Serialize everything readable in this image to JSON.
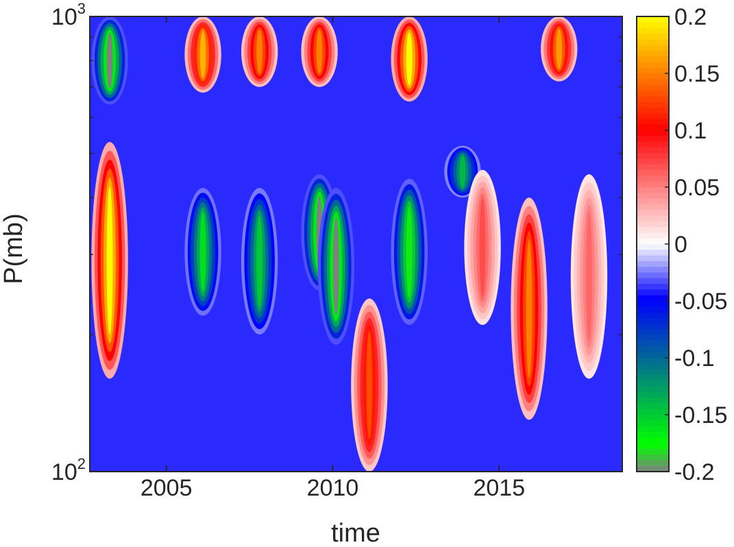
{
  "chart_data": {
    "type": "heatmap",
    "title": "",
    "xlabel": "time",
    "ylabel": "P(mb)",
    "x_range": [
      2002.7,
      2018.7
    ],
    "y_range": [
      1000,
      100
    ],
    "y_scale": "log",
    "x_ticks": [
      "2005",
      "2010",
      "2015"
    ],
    "x_tick_values": [
      2005,
      2010,
      2015
    ],
    "y_ticks": [
      {
        "base": "10",
        "exp": "3",
        "value": 1000
      },
      {
        "base": "10",
        "exp": "2",
        "value": 100
      }
    ],
    "colorbar": {
      "range": [
        -0.2,
        0.2
      ],
      "tick_labels": [
        "0.2",
        "0.15",
        "0.1",
        "0.05",
        "0",
        "-0.05",
        "-0.1",
        "-0.15",
        "-0.2"
      ],
      "tick_values": [
        0.2,
        0.15,
        0.1,
        0.05,
        0,
        -0.05,
        -0.1,
        -0.15,
        -0.2
      ],
      "colors": [
        "#808080",
        "#00ff00",
        "#008080",
        "#0000ff",
        "#ffffff",
        "#ff0000",
        "#ffff00"
      ]
    },
    "features": [
      {
        "time": 2003.3,
        "p_low": 160,
        "p_high": 530,
        "value": 0.2
      },
      {
        "time": 2003.3,
        "p_low": 640,
        "p_high": 1000,
        "value": -0.2
      },
      {
        "time": 2006.1,
        "p_low": 680,
        "p_high": 1000,
        "value": 0.17
      },
      {
        "time": 2006.1,
        "p_low": 220,
        "p_high": 420,
        "value": -0.16
      },
      {
        "time": 2007.8,
        "p_low": 700,
        "p_high": 1000,
        "value": 0.15
      },
      {
        "time": 2007.8,
        "p_low": 200,
        "p_high": 420,
        "value": -0.15
      },
      {
        "time": 2009.6,
        "p_low": 250,
        "p_high": 450,
        "value": -0.2
      },
      {
        "time": 2009.6,
        "p_low": 700,
        "p_high": 1000,
        "value": 0.15
      },
      {
        "time": 2010.1,
        "p_low": 190,
        "p_high": 420,
        "value": -0.2
      },
      {
        "time": 2011.1,
        "p_low": 100,
        "p_high": 240,
        "value": 0.13
      },
      {
        "time": 2012.3,
        "p_low": 650,
        "p_high": 1000,
        "value": 0.2
      },
      {
        "time": 2012.3,
        "p_low": 210,
        "p_high": 440,
        "value": -0.18
      },
      {
        "time": 2013.9,
        "p_low": 400,
        "p_high": 520,
        "value": -0.14
      },
      {
        "time": 2014.5,
        "p_low": 210,
        "p_high": 460,
        "value": 0.07
      },
      {
        "time": 2015.9,
        "p_low": 130,
        "p_high": 400,
        "value": 0.15
      },
      {
        "time": 2016.8,
        "p_low": 720,
        "p_high": 1000,
        "value": 0.16
      },
      {
        "time": 2017.7,
        "p_low": 160,
        "p_high": 450,
        "value": 0.06
      }
    ]
  }
}
